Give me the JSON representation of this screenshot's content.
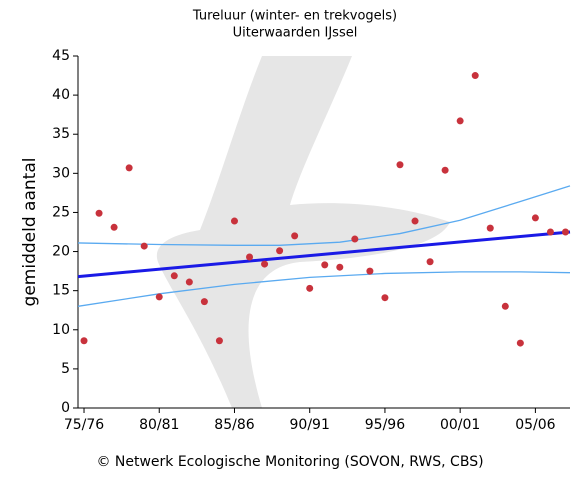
{
  "chart_data": {
    "type": "scatter",
    "title": [
      "Tureluur (winter- en trekvogels)",
      "Uiterwaarden IJssel"
    ],
    "y_label": "gemiddeld aantal",
    "footer": "© Netwerk Ecologische Monitoring (SOVON, RWS, CBS)",
    "xlim": [
      1974.6,
      2007.3
    ],
    "ylim": [
      0,
      45
    ],
    "xticks": [
      {
        "value": 1975,
        "label": "75/76"
      },
      {
        "value": 1980,
        "label": "80/81"
      },
      {
        "value": 1985,
        "label": "85/86"
      },
      {
        "value": 1990,
        "label": "90/91"
      },
      {
        "value": 1995,
        "label": "95/96"
      },
      {
        "value": 2000,
        "label": "00/01"
      },
      {
        "value": 2005,
        "label": "05/06"
      }
    ],
    "yticks": [
      0,
      5,
      10,
      15,
      20,
      25,
      30,
      35,
      40,
      45
    ],
    "series": [
      {
        "mode": "lines",
        "color": "#5aaaf0",
        "width": 1.3,
        "x": [
          1974.6,
          1980,
          1985,
          1988,
          1992,
          1996,
          2000,
          2004,
          2007.3
        ],
        "values": [
          21.1,
          20.9,
          20.8,
          20.8,
          21.2,
          22.3,
          24.0,
          26.4,
          28.4
        ]
      },
      {
        "mode": "lines",
        "color": "#5aaaf0",
        "width": 1.3,
        "x": [
          1974.6,
          1980,
          1985,
          1990,
          1995,
          2000,
          2004,
          2007.3
        ],
        "values": [
          13.0,
          14.6,
          15.8,
          16.7,
          17.2,
          17.4,
          17.4,
          17.3
        ]
      },
      {
        "mode": "lines",
        "color": "#1a1ae6",
        "width": 3,
        "x": [
          1974.6,
          2007.3
        ],
        "values": [
          16.8,
          22.5
        ]
      },
      {
        "mode": "markers",
        "color": "#c8323c",
        "x": [
          1975,
          1976,
          1977,
          1978,
          1979,
          1980,
          1981,
          1982,
          1983,
          1984,
          1985,
          1986,
          1987,
          1988,
          1989,
          1990,
          1991,
          1992,
          1993,
          1994,
          1995,
          1996,
          1997,
          1998,
          1999,
          2000,
          2001,
          2002,
          2003,
          2004,
          2005,
          2006,
          2007
        ],
        "values": [
          8.6,
          24.9,
          23.1,
          30.7,
          20.7,
          14.2,
          16.9,
          16.1,
          13.6,
          8.6,
          23.9,
          19.3,
          18.4,
          20.1,
          22.0,
          15.3,
          18.3,
          18.0,
          21.6,
          17.5,
          14.1,
          31.1,
          23.9,
          18.7,
          30.4,
          36.7,
          42.5,
          23.0,
          13.0,
          8.3,
          24.3,
          22.5,
          22.5
        ]
      }
    ]
  }
}
